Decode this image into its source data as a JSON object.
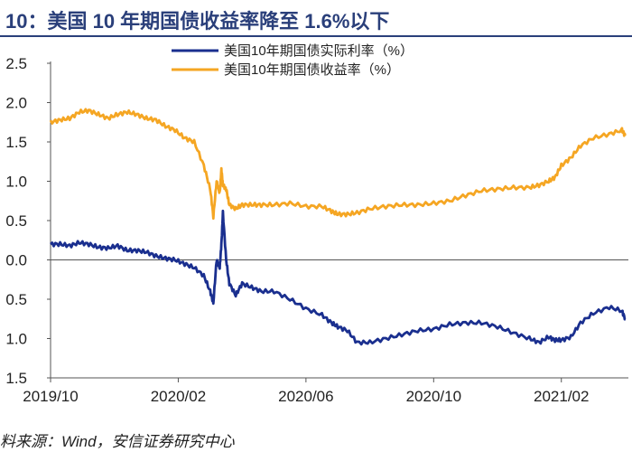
{
  "title": "10：美国 10 年期国债收益率降至 1.6%以下",
  "source": "料来源：Wind，安信证券研究中心",
  "colors": {
    "real": "#1a2f8f",
    "nominal": "#f5a623",
    "title": "#2a3f7a"
  },
  "chart_data": {
    "type": "line",
    "title": "10：美国 10 年期国债收益率降至 1.6%以下",
    "xlabel": "",
    "ylabel": "",
    "ylim": [
      -1.5,
      2.5
    ],
    "y_ticks": [
      2.5,
      2.0,
      1.5,
      1.0,
      0.5,
      0.0,
      -0.5,
      -1.0,
      -1.5
    ],
    "y_tick_labels": [
      "2.5",
      "2.0",
      "1.5",
      "1.0",
      "0.5",
      "0.0",
      "0.5",
      "1.0",
      "1.5"
    ],
    "x_ticks": [
      0,
      4,
      8,
      12,
      16
    ],
    "x_tick_labels": [
      "2019/10",
      "2020/02",
      "2020/06",
      "2020/10",
      "2021/02"
    ],
    "legend": "top-right",
    "series": [
      {
        "name": "美国10年期国债实际利率（%）",
        "color": "#1a2f8f",
        "x": [
          0,
          0.3,
          0.6,
          0.9,
          1.2,
          1.5,
          1.8,
          2.1,
          2.4,
          2.7,
          3.0,
          3.3,
          3.6,
          3.9,
          4.2,
          4.5,
          4.8,
          5.0,
          5.1,
          5.2,
          5.3,
          5.35,
          5.4,
          5.5,
          5.6,
          5.8,
          6.0,
          6.3,
          6.6,
          7.0,
          7.5,
          8.0,
          8.5,
          8.8,
          9.0,
          9.3,
          9.6,
          10.0,
          10.5,
          11.0,
          11.5,
          12.0,
          12.5,
          13.0,
          13.5,
          14.0,
          14.5,
          15.0,
          15.3,
          15.6,
          15.8,
          16.0,
          16.3,
          16.6,
          17.0,
          17.5,
          17.9,
          18.0
        ],
        "values": [
          0.2,
          0.2,
          0.18,
          0.22,
          0.2,
          0.16,
          0.15,
          0.18,
          0.12,
          0.12,
          0.1,
          0.05,
          0.02,
          0.0,
          -0.05,
          -0.1,
          -0.2,
          -0.4,
          -0.55,
          0.0,
          -0.1,
          0.2,
          0.6,
          0.0,
          -0.3,
          -0.45,
          -0.3,
          -0.35,
          -0.4,
          -0.4,
          -0.5,
          -0.62,
          -0.7,
          -0.8,
          -0.85,
          -0.9,
          -1.05,
          -1.05,
          -1.0,
          -0.95,
          -0.9,
          -0.88,
          -0.82,
          -0.8,
          -0.8,
          -0.85,
          -0.93,
          -1.0,
          -1.05,
          -0.98,
          -1.02,
          -1.02,
          -0.98,
          -0.8,
          -0.68,
          -0.6,
          -0.65,
          -0.75
        ]
      },
      {
        "name": "美国10年期国债收益率（%）",
        "color": "#f5a623",
        "x": [
          0,
          0.3,
          0.6,
          0.9,
          1.2,
          1.5,
          1.8,
          2.1,
          2.4,
          2.7,
          3.0,
          3.3,
          3.6,
          3.9,
          4.2,
          4.5,
          4.8,
          5.0,
          5.1,
          5.2,
          5.3,
          5.35,
          5.4,
          5.5,
          5.6,
          5.8,
          6.0,
          6.3,
          6.6,
          7.0,
          7.5,
          8.0,
          8.5,
          8.8,
          9.0,
          9.3,
          9.6,
          10.0,
          10.5,
          11.0,
          11.5,
          12.0,
          12.5,
          13.0,
          13.5,
          14.0,
          14.5,
          15.0,
          15.3,
          15.6,
          15.8,
          16.0,
          16.3,
          16.6,
          17.0,
          17.5,
          17.9,
          18.0
        ],
        "values": [
          1.75,
          1.78,
          1.8,
          1.88,
          1.9,
          1.85,
          1.8,
          1.85,
          1.88,
          1.85,
          1.8,
          1.78,
          1.7,
          1.65,
          1.55,
          1.5,
          1.2,
          0.9,
          0.55,
          1.0,
          0.85,
          1.15,
          0.95,
          0.9,
          0.7,
          0.65,
          0.7,
          0.7,
          0.7,
          0.7,
          0.72,
          0.68,
          0.68,
          0.62,
          0.58,
          0.58,
          0.6,
          0.65,
          0.68,
          0.7,
          0.7,
          0.72,
          0.75,
          0.82,
          0.88,
          0.9,
          0.92,
          0.92,
          0.95,
          1.0,
          1.05,
          1.2,
          1.3,
          1.45,
          1.55,
          1.6,
          1.65,
          1.58
        ]
      }
    ]
  }
}
